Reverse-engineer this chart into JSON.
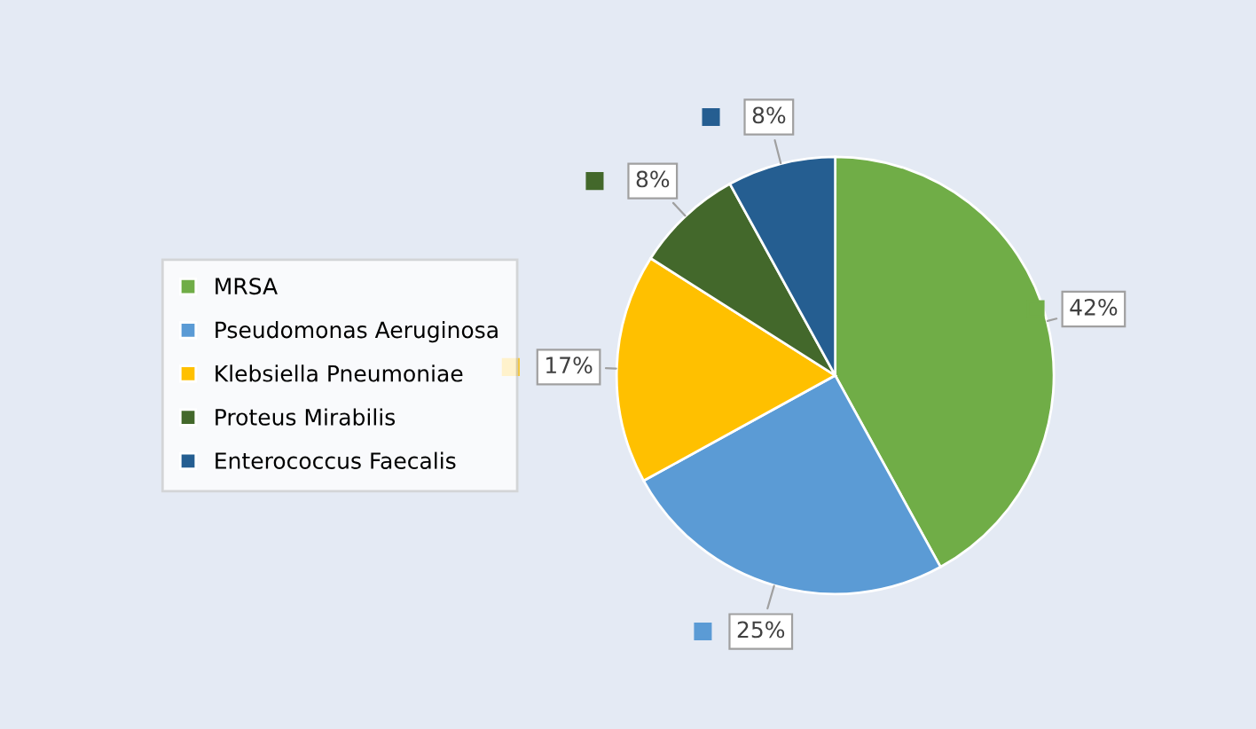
{
  "chart_data": {
    "type": "pie",
    "categories": [
      "MRSA",
      "Pseudomonas Aeruginosa",
      "Klebsiella Pneumoniae",
      "Proteus Mirabilis",
      "Enterococcus Faecalis"
    ],
    "values": [
      42,
      25,
      17,
      8,
      8
    ],
    "colors": [
      "#70ad47",
      "#5b9bd5",
      "#ffc000",
      "#43682b",
      "#255e91"
    ],
    "value_labels": [
      "42%",
      "25%",
      "17%",
      "8%",
      "8%"
    ],
    "legend": "left"
  }
}
